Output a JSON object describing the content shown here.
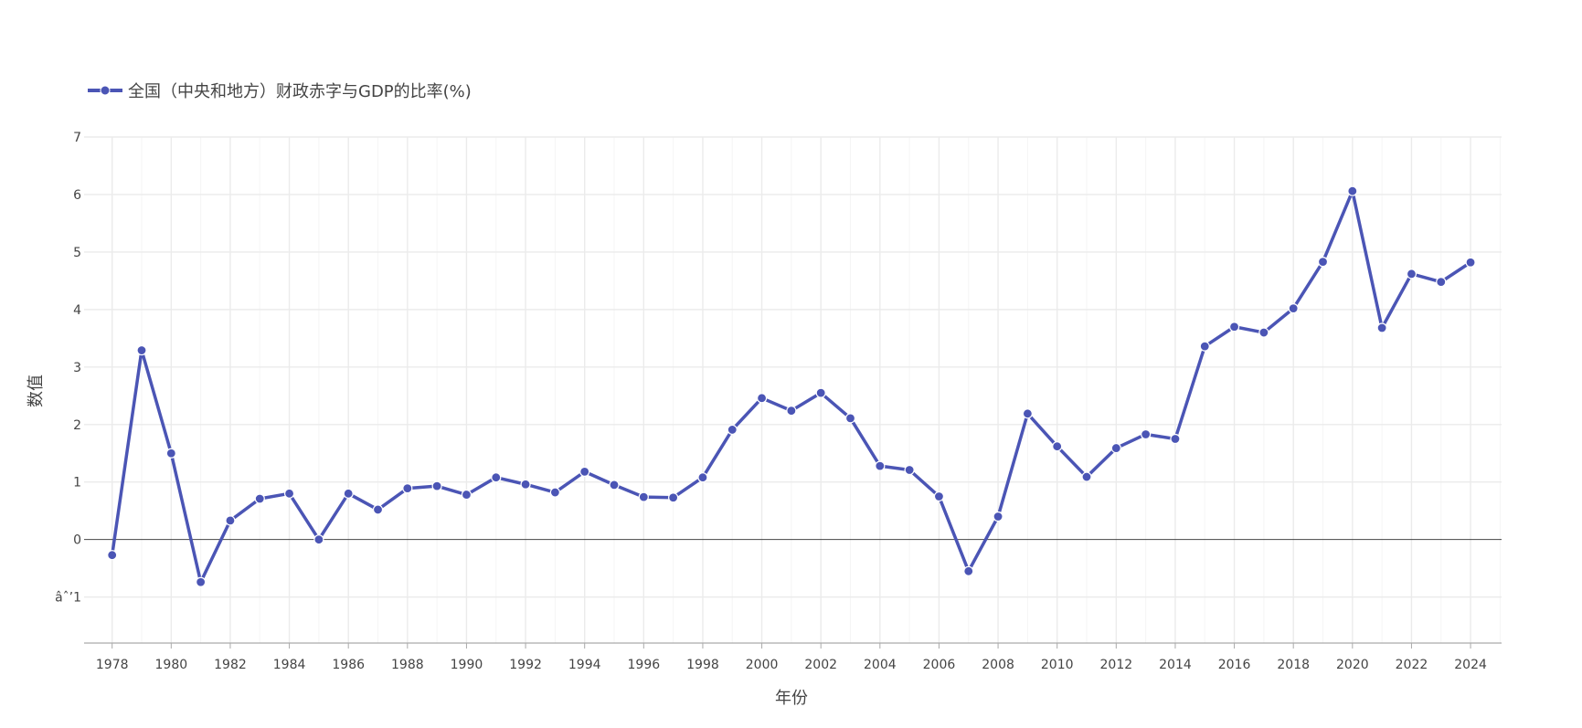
{
  "chart_data": {
    "type": "line",
    "legend": {
      "label": "全国（中央和地方）财政赤字与GDP的比率(%)",
      "placement": "top-left"
    },
    "xlabel": "年份",
    "ylabel": "数值",
    "xlim": [
      1977.05,
      2025.05
    ],
    "ylim": [
      -1.8,
      7.0
    ],
    "x_ticks": [
      1978,
      1980,
      1982,
      1984,
      1986,
      1988,
      1990,
      1992,
      1994,
      1996,
      1998,
      2000,
      2002,
      2004,
      2006,
      2008,
      2010,
      2012,
      2014,
      2016,
      2018,
      2020,
      2022,
      2024
    ],
    "x_tick_labels": [
      "1978",
      "1980",
      "1982",
      "1984",
      "1986",
      "1988",
      "1990",
      "1992",
      "1994",
      "1996",
      "1998",
      "2000",
      "2002",
      "2004",
      "2006",
      "2008",
      "2010",
      "2012",
      "2014",
      "2016",
      "2018",
      "2020",
      "2022",
      "2024"
    ],
    "y_ticks": [
      -1,
      0,
      1,
      2,
      3,
      4,
      5,
      6,
      7
    ],
    "y_tick_labels": [
      "âˆ’1",
      "0",
      "1",
      "2",
      "3",
      "4",
      "5",
      "6",
      "7"
    ],
    "grid": true,
    "zero_line": true,
    "series": [
      {
        "name": "全国（中央和地方）财政赤字与GDP的比率(%)",
        "color": "#4b55b5",
        "x": [
          1978,
          1979,
          1980,
          1981,
          1982,
          1983,
          1984,
          1985,
          1986,
          1987,
          1988,
          1989,
          1990,
          1991,
          1992,
          1993,
          1994,
          1995,
          1996,
          1997,
          1998,
          1999,
          2000,
          2001,
          2002,
          2003,
          2004,
          2005,
          2006,
          2007,
          2008,
          2009,
          2010,
          2011,
          2012,
          2013,
          2014,
          2015,
          2016,
          2017,
          2018,
          2019,
          2020,
          2021,
          2022,
          2023,
          2024
        ],
        "values": [
          -0.27,
          3.29,
          1.5,
          -0.74,
          0.33,
          0.71,
          0.8,
          0.0,
          0.8,
          0.52,
          0.89,
          0.93,
          0.78,
          1.08,
          0.96,
          0.82,
          1.18,
          0.95,
          0.74,
          0.73,
          1.08,
          1.91,
          2.46,
          2.24,
          2.55,
          2.11,
          1.28,
          1.21,
          0.75,
          -0.55,
          0.4,
          2.19,
          1.62,
          1.09,
          1.59,
          1.83,
          1.75,
          3.36,
          3.7,
          3.6,
          4.02,
          4.83,
          6.06,
          3.68,
          4.62,
          4.48,
          4.82
        ]
      }
    ]
  }
}
